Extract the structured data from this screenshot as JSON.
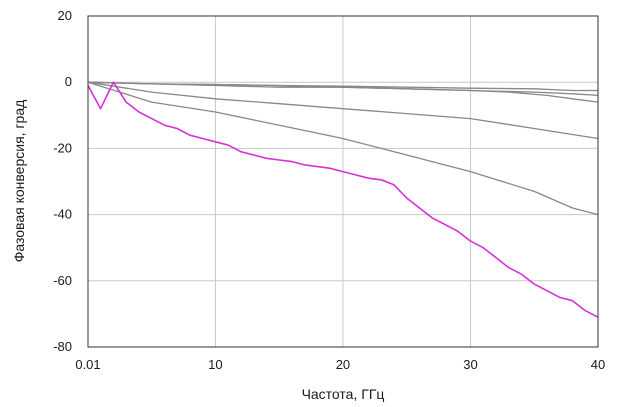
{
  "chart_data": {
    "type": "line",
    "title": "",
    "xlabel": "Частота, ГГц",
    "ylabel": "Фазовая конверсия, град",
    "xlim": [
      0.01,
      40
    ],
    "ylim": [
      -80,
      20
    ],
    "x_ticks": [
      0.01,
      10,
      20,
      30,
      40
    ],
    "x_tick_labels": [
      "0.01",
      "10",
      "20",
      "30",
      "40"
    ],
    "y_ticks": [
      -80,
      -60,
      -40,
      -20,
      0,
      20
    ],
    "y_tick_labels": [
      "-80",
      "-60",
      "-40",
      "-20",
      "0",
      "20"
    ],
    "grid": true,
    "legend": "none",
    "colors": {
      "highlight": "#d631d6",
      "series": "#888888",
      "zero_line": "#c8c8c8",
      "grid": "#c8c8c8",
      "frame": "#333333"
    },
    "series": [
      {
        "color": "#888888",
        "x": [
          0.01,
          5,
          10,
          15,
          20,
          25,
          30,
          35,
          38,
          40
        ],
        "y": [
          0,
          -0.5,
          -0.7,
          -1,
          -1.2,
          -1.5,
          -1.8,
          -2,
          -2.5,
          -2.5
        ]
      },
      {
        "color": "#888888",
        "x": [
          0.01,
          5,
          10,
          15,
          20,
          25,
          30,
          35,
          38,
          40
        ],
        "y": [
          0,
          -0.5,
          -1,
          -1.5,
          -1.5,
          -2,
          -2.5,
          -3,
          -3.5,
          -4
        ]
      },
      {
        "color": "#888888",
        "x": [
          0.01,
          5,
          10,
          15,
          20,
          25,
          30,
          33,
          36,
          38,
          40
        ],
        "y": [
          0,
          -0.5,
          -0.7,
          -1,
          -1.5,
          -2,
          -2.5,
          -3,
          -4,
          -5,
          -6
        ]
      },
      {
        "color": "#888888",
        "x": [
          0.01,
          5,
          10,
          15,
          20,
          25,
          30,
          35,
          40
        ],
        "y": [
          0,
          -3,
          -5,
          -6.5,
          -8,
          -9.5,
          -11,
          -14,
          -17
        ]
      },
      {
        "color": "#888888",
        "x": [
          0.01,
          5,
          10,
          15,
          20,
          25,
          30,
          35,
          38,
          40
        ],
        "y": [
          0,
          -6,
          -9,
          -13,
          -17,
          -22,
          -27,
          -33,
          -38,
          -40
        ]
      },
      {
        "color": "#d631d6",
        "x": [
          0.01,
          1,
          1.5,
          2,
          2.5,
          3,
          4,
          5,
          6,
          7,
          8,
          9,
          10,
          11,
          12,
          13,
          14,
          15,
          16,
          17,
          18,
          19,
          20,
          21,
          22,
          23,
          24,
          25,
          26,
          27,
          28,
          29,
          30,
          31,
          32,
          33,
          34,
          35,
          36,
          37,
          38,
          39,
          40
        ],
        "y": [
          -1,
          -8,
          -4,
          0,
          -3,
          -6,
          -9,
          -11,
          -13,
          -14,
          -16,
          -17,
          -18,
          -19,
          -21,
          -22,
          -23,
          -23.5,
          -24,
          -25,
          -25.5,
          -26,
          -27,
          -28,
          -29,
          -29.5,
          -31,
          -35,
          -38,
          -41,
          -43,
          -45,
          -48,
          -50,
          -53,
          -56,
          -58,
          -61,
          -63,
          -65,
          -66,
          -69,
          -71
        ]
      }
    ]
  }
}
